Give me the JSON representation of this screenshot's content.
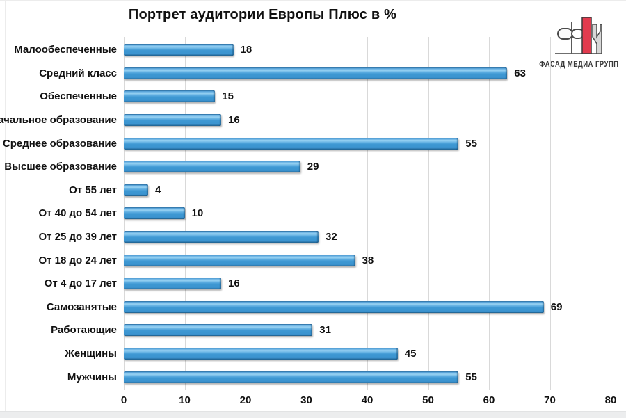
{
  "title": "Портрет аудитории Европы Плюс в %",
  "logo": {
    "text": "ФАСАД МЕДИА ГРУПП",
    "accent_color": "#E23B4E"
  },
  "chart_data": {
    "type": "bar",
    "orientation": "horizontal",
    "title": "Портрет аудитории Европы Плюс в %",
    "categories": [
      "Малообеспеченные",
      "Средний класс",
      "Обеспеченные",
      "Начальное образование",
      "Среднее образование",
      "Высшее образование",
      "От 55 лет",
      "От 40 до 54 лет",
      "От 25 до 39 лет",
      "От 18 до 24 лет",
      "От 4 до 17 лет",
      "Самозанятые",
      "Работающие",
      "Женщины",
      "Мужчины"
    ],
    "values": [
      18,
      63,
      15,
      16,
      55,
      29,
      4,
      10,
      32,
      38,
      16,
      69,
      31,
      45,
      55
    ],
    "xlim": [
      0,
      80
    ],
    "x_ticks": [
      0,
      10,
      20,
      30,
      40,
      50,
      60,
      70,
      80
    ],
    "grid": true,
    "legend": false,
    "value_labels": true,
    "unit": "%"
  },
  "colors": {
    "bar": "#3E98D3",
    "bar_highlight": "#9AD3F3",
    "bar_edge": "#1F618F",
    "grid": "#D9D9D9",
    "text": "#111111",
    "background": "#FFFFFF",
    "logo_red": "#E23B4E",
    "bottom_strip": "#ECEDEE"
  }
}
